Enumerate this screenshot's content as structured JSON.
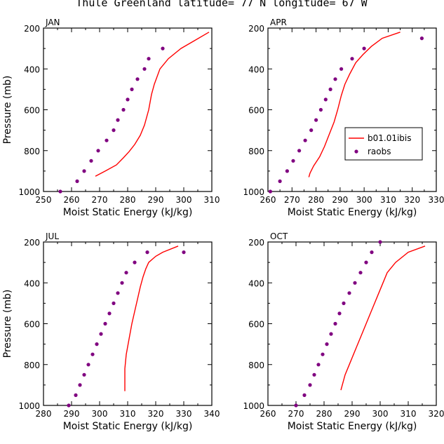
{
  "figure": {
    "title": "Thule Greenland  latitude= 77 N longitude= 67 W"
  },
  "colors": {
    "model": "#ff0000",
    "obs": "#800080",
    "axes": "#000000"
  },
  "chart_data": [
    {
      "type": "scatter",
      "panel_label": "JAN",
      "xlabel": "Moist Static Energy (kJ/kg)",
      "ylabel": "Pressure (mb)",
      "xlim": [
        250,
        310
      ],
      "ylim": [
        1000,
        200
      ],
      "xticks": [
        250,
        260,
        270,
        280,
        290,
        300,
        310
      ],
      "yticks": [
        1000,
        800,
        600,
        400,
        200
      ],
      "series": [
        {
          "name": "b01.01ibis",
          "style": "line",
          "x": [
            268.5,
            272,
            276,
            278.5,
            280.5,
            282.5,
            284.5,
            286,
            287.5,
            288.5,
            289.5,
            291.5,
            294.5,
            299,
            304,
            309
          ],
          "y": [
            925,
            900,
            870,
            835,
            805,
            770,
            725,
            675,
            600,
            525,
            475,
            400,
            350,
            300,
            260,
            220
          ]
        },
        {
          "name": "raobs",
          "style": "markers",
          "x": [
            256,
            262,
            264.5,
            267,
            269.5,
            272.5,
            275,
            276.5,
            278.5,
            280,
            281.5,
            283.5,
            286,
            287.5,
            292.5
          ],
          "y": [
            1000,
            950,
            900,
            850,
            800,
            750,
            700,
            650,
            600,
            550,
            500,
            450,
            400,
            350,
            300
          ]
        }
      ]
    },
    {
      "type": "scatter",
      "panel_label": "APR",
      "xlabel": "Moist Static Energy (kJ/kg)",
      "ylabel": "",
      "xlim": [
        260,
        330
      ],
      "ylim": [
        1000,
        200
      ],
      "xticks": [
        260,
        270,
        280,
        290,
        300,
        310,
        320,
        330
      ],
      "yticks": [
        1000,
        800,
        600,
        400,
        200
      ],
      "legend": {
        "position": "right",
        "entries": [
          "b01.01ibis",
          "raobs"
        ]
      },
      "series": [
        {
          "name": "b01.01ibis",
          "style": "line",
          "x": [
            277,
            277.5,
            279,
            281.5,
            283.5,
            285.5,
            287.5,
            289,
            290.5,
            292,
            294,
            296.5,
            299.5,
            303,
            307.5,
            315
          ],
          "y": [
            930,
            910,
            875,
            830,
            780,
            720,
            660,
            600,
            530,
            475,
            425,
            370,
            330,
            290,
            250,
            220
          ]
        },
        {
          "name": "raobs",
          "style": "markers",
          "x": [
            261,
            265,
            268,
            270.5,
            273,
            275.5,
            278,
            280,
            282,
            284,
            286,
            288,
            290.5,
            295,
            300,
            324
          ],
          "y": [
            1000,
            950,
            900,
            850,
            800,
            750,
            700,
            650,
            600,
            550,
            500,
            450,
            400,
            350,
            300,
            250
          ]
        }
      ]
    },
    {
      "type": "scatter",
      "panel_label": "JUL",
      "xlabel": "Moist Static Energy (kJ/kg)",
      "ylabel": "Pressure (mb)",
      "xlim": [
        280,
        340
      ],
      "ylim": [
        1000,
        200
      ],
      "xticks": [
        280,
        290,
        300,
        310,
        320,
        330,
        340
      ],
      "yticks": [
        1000,
        800,
        600,
        400,
        200
      ],
      "series": [
        {
          "name": "b01.01ibis",
          "style": "line",
          "x": [
            309,
            309,
            309,
            309.5,
            310.5,
            311.5,
            312.5,
            313.5,
            314.5,
            315.5,
            316.5,
            317.5,
            320,
            322.5,
            328
          ],
          "y": [
            930,
            875,
            820,
            750,
            675,
            600,
            540,
            480,
            420,
            370,
            330,
            300,
            270,
            250,
            220
          ]
        },
        {
          "name": "raobs",
          "style": "markers",
          "x": [
            289,
            291.5,
            293,
            294.5,
            296,
            297.5,
            299,
            300.5,
            302,
            303.5,
            305,
            306.5,
            308,
            309.5,
            312.5,
            317,
            330
          ],
          "y": [
            1000,
            950,
            900,
            850,
            800,
            750,
            700,
            650,
            600,
            550,
            500,
            450,
            400,
            350,
            300,
            250,
            250
          ]
        }
      ]
    },
    {
      "type": "scatter",
      "panel_label": "OCT",
      "xlabel": "Moist Static Energy (kJ/kg)",
      "ylabel": "",
      "xlim": [
        260,
        320
      ],
      "ylim": [
        1000,
        200
      ],
      "xticks": [
        260,
        270,
        280,
        290,
        300,
        310,
        320
      ],
      "yticks": [
        1000,
        800,
        600,
        400,
        200
      ],
      "series": [
        {
          "name": "b01.01ibis",
          "style": "line",
          "x": [
            286,
            286.5,
            287.5,
            289,
            290.5,
            292,
            293.5,
            295,
            296.5,
            298,
            299.5,
            301,
            302.5,
            305.5,
            310,
            316
          ],
          "y": [
            925,
            900,
            850,
            800,
            750,
            700,
            650,
            600,
            550,
            500,
            450,
            400,
            350,
            300,
            250,
            220
          ]
        },
        {
          "name": "raobs",
          "style": "markers",
          "x": [
            270,
            273,
            275,
            276.5,
            278,
            279.5,
            281,
            282.5,
            284,
            285.5,
            287,
            289,
            291,
            293,
            295,
            297,
            300
          ],
          "y": [
            1000,
            950,
            900,
            850,
            800,
            750,
            700,
            650,
            600,
            550,
            500,
            450,
            400,
            350,
            300,
            250,
            200
          ]
        }
      ]
    }
  ]
}
